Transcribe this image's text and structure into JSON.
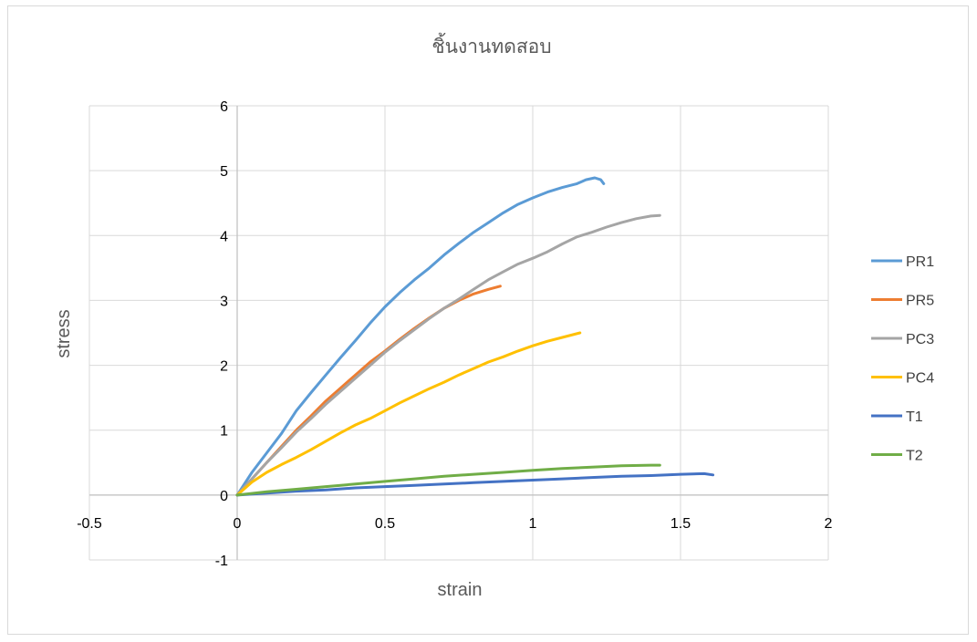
{
  "chart_data": {
    "type": "line",
    "title": "ชิ้นงานทดสอบ",
    "xlabel": "strain",
    "ylabel": "stress",
    "xlim": [
      -0.5,
      2
    ],
    "ylim": [
      -1,
      6
    ],
    "x_ticks": [
      "-0.5",
      "0",
      "0.5",
      "1",
      "1.5",
      "2"
    ],
    "y_ticks": [
      "-1",
      "0",
      "1",
      "2",
      "3",
      "4",
      "5",
      "6"
    ],
    "grid": true,
    "legend_position": "right",
    "series": [
      {
        "name": "PR1",
        "color": "#5b9bd5",
        "x": [
          0,
          0.05,
          0.1,
          0.15,
          0.2,
          0.25,
          0.3,
          0.35,
          0.4,
          0.45,
          0.5,
          0.55,
          0.6,
          0.65,
          0.7,
          0.75,
          0.8,
          0.85,
          0.9,
          0.95,
          1.0,
          1.05,
          1.1,
          1.15,
          1.18,
          1.21,
          1.23,
          1.24
        ],
        "y": [
          0,
          0.35,
          0.65,
          0.95,
          1.3,
          1.58,
          1.85,
          2.12,
          2.38,
          2.65,
          2.9,
          3.12,
          3.32,
          3.5,
          3.7,
          3.88,
          4.05,
          4.2,
          4.35,
          4.48,
          4.58,
          4.67,
          4.74,
          4.8,
          4.86,
          4.89,
          4.86,
          4.8
        ]
      },
      {
        "name": "PR5",
        "color": "#ed7d31",
        "x": [
          0,
          0.05,
          0.1,
          0.15,
          0.2,
          0.25,
          0.3,
          0.35,
          0.4,
          0.45,
          0.5,
          0.55,
          0.6,
          0.65,
          0.7,
          0.75,
          0.8,
          0.85,
          0.89
        ],
        "y": [
          0,
          0.25,
          0.5,
          0.75,
          1.0,
          1.22,
          1.45,
          1.65,
          1.85,
          2.05,
          2.22,
          2.4,
          2.57,
          2.73,
          2.88,
          3.0,
          3.1,
          3.17,
          3.22
        ]
      },
      {
        "name": "PC3",
        "color": "#a5a5a5",
        "x": [
          0,
          0.05,
          0.1,
          0.15,
          0.2,
          0.25,
          0.3,
          0.35,
          0.4,
          0.45,
          0.5,
          0.55,
          0.6,
          0.65,
          0.7,
          0.75,
          0.8,
          0.85,
          0.9,
          0.95,
          1.0,
          1.05,
          1.1,
          1.15,
          1.2,
          1.25,
          1.3,
          1.35,
          1.4,
          1.43
        ],
        "y": [
          0,
          0.25,
          0.5,
          0.73,
          0.97,
          1.18,
          1.4,
          1.6,
          1.8,
          2.0,
          2.2,
          2.38,
          2.55,
          2.72,
          2.88,
          3.02,
          3.17,
          3.32,
          3.44,
          3.56,
          3.65,
          3.75,
          3.87,
          3.98,
          4.05,
          4.13,
          4.2,
          4.26,
          4.3,
          4.31
        ]
      },
      {
        "name": "PC4",
        "color": "#ffc000",
        "x": [
          0,
          0.05,
          0.1,
          0.15,
          0.2,
          0.25,
          0.3,
          0.35,
          0.4,
          0.45,
          0.5,
          0.55,
          0.6,
          0.65,
          0.7,
          0.75,
          0.8,
          0.85,
          0.9,
          0.95,
          1.0,
          1.05,
          1.1,
          1.16
        ],
        "y": [
          0,
          0.2,
          0.35,
          0.47,
          0.58,
          0.7,
          0.83,
          0.96,
          1.08,
          1.18,
          1.3,
          1.42,
          1.53,
          1.64,
          1.74,
          1.85,
          1.95,
          2.05,
          2.13,
          2.22,
          2.3,
          2.37,
          2.43,
          2.5
        ]
      },
      {
        "name": "T1",
        "color": "#4472c4",
        "x": [
          0,
          0.1,
          0.2,
          0.3,
          0.4,
          0.5,
          0.6,
          0.7,
          0.8,
          0.9,
          1.0,
          1.1,
          1.2,
          1.3,
          1.4,
          1.5,
          1.58,
          1.61
        ],
        "y": [
          0,
          0.03,
          0.06,
          0.08,
          0.11,
          0.13,
          0.15,
          0.17,
          0.19,
          0.21,
          0.23,
          0.25,
          0.27,
          0.29,
          0.3,
          0.32,
          0.33,
          0.31
        ]
      },
      {
        "name": "T2",
        "color": "#70ad47",
        "x": [
          0,
          0.1,
          0.2,
          0.3,
          0.4,
          0.5,
          0.6,
          0.7,
          0.8,
          0.9,
          1.0,
          1.1,
          1.2,
          1.3,
          1.4,
          1.43
        ],
        "y": [
          0,
          0.05,
          0.09,
          0.13,
          0.17,
          0.21,
          0.25,
          0.29,
          0.32,
          0.35,
          0.38,
          0.41,
          0.43,
          0.45,
          0.46,
          0.46
        ]
      }
    ]
  }
}
